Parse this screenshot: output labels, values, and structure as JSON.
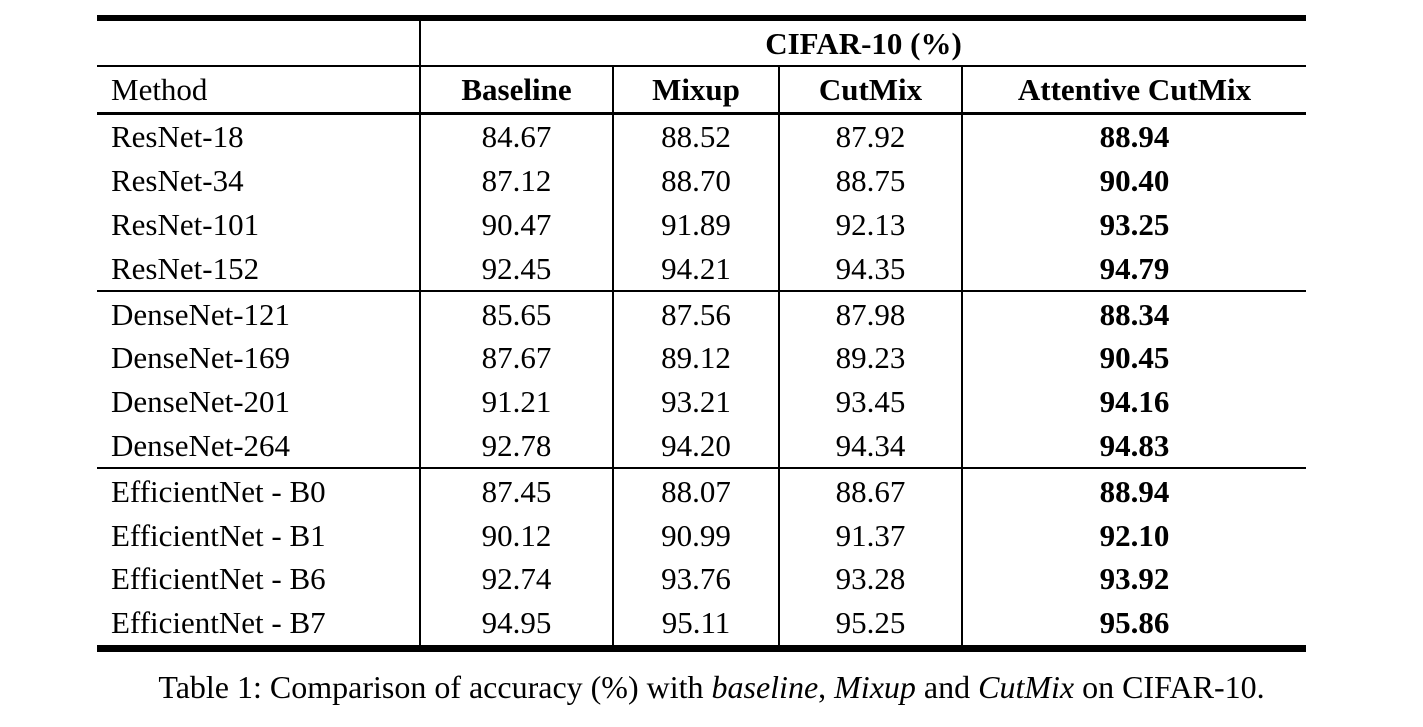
{
  "table": {
    "group_header": "CIFAR-10 (%)",
    "columns": [
      "Method",
      "Baseline",
      "Mixup",
      "CutMix",
      "Attentive CutMix"
    ],
    "rows": [
      {
        "method": "ResNet-18",
        "baseline": "84.67",
        "mixup": "88.52",
        "cutmix": "87.92",
        "attentive": "88.94"
      },
      {
        "method": "ResNet-34",
        "baseline": "87.12",
        "mixup": "88.70",
        "cutmix": "88.75",
        "attentive": "90.40"
      },
      {
        "method": "ResNet-101",
        "baseline": "90.47",
        "mixup": "91.89",
        "cutmix": "92.13",
        "attentive": "93.25"
      },
      {
        "method": "ResNet-152",
        "baseline": "92.45",
        "mixup": "94.21",
        "cutmix": "94.35",
        "attentive": "94.79"
      },
      {
        "method": "DenseNet-121",
        "baseline": "85.65",
        "mixup": "87.56",
        "cutmix": "87.98",
        "attentive": "88.34"
      },
      {
        "method": "DenseNet-169",
        "baseline": "87.67",
        "mixup": "89.12",
        "cutmix": "89.23",
        "attentive": "90.45"
      },
      {
        "method": "DenseNet-201",
        "baseline": "91.21",
        "mixup": "93.21",
        "cutmix": "93.45",
        "attentive": "94.16"
      },
      {
        "method": "DenseNet-264",
        "baseline": "92.78",
        "mixup": "94.20",
        "cutmix": "94.34",
        "attentive": "94.83"
      },
      {
        "method": "EfficientNet - B0",
        "baseline": "87.45",
        "mixup": "88.07",
        "cutmix": "88.67",
        "attentive": "88.94"
      },
      {
        "method": "EfficientNet - B1",
        "baseline": "90.12",
        "mixup": "90.99",
        "cutmix": "91.37",
        "attentive": "92.10"
      },
      {
        "method": "EfficientNet - B6",
        "baseline": "92.74",
        "mixup": "93.76",
        "cutmix": "93.28",
        "attentive": "93.92"
      },
      {
        "method": "EfficientNet - B7",
        "baseline": "94.95",
        "mixup": "95.11",
        "cutmix": "95.25",
        "attentive": "95.86"
      }
    ]
  },
  "caption": {
    "prefix": "Table 1: Comparison of accuracy (%) with ",
    "term1": "baseline",
    "sep1": ", ",
    "term2": "Mixup",
    "sep2": " and ",
    "term3": "CutMix",
    "suffix": " on CIFAR-10."
  },
  "colors": {
    "text": "#000000",
    "background": "#ffffff"
  }
}
